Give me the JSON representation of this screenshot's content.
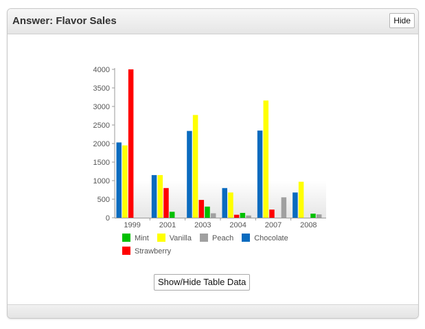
{
  "panel": {
    "title": "Answer: Flavor Sales",
    "hide_label": "Hide",
    "toggle_label": "Show/Hide Table Data"
  },
  "chart_data": {
    "type": "bar",
    "categories": [
      "1999",
      "2001",
      "2003",
      "2004",
      "2007",
      "2008"
    ],
    "ylim": [
      0,
      4000
    ],
    "yticks": [
      0,
      500,
      1000,
      1500,
      2000,
      2500,
      3000,
      3500,
      4000
    ],
    "grid": false,
    "legend_placement": "bottom",
    "series": [
      {
        "name": "Chocolate",
        "color": "#0a6bbf",
        "values": [
          2030,
          1150,
          2340,
          800,
          2350,
          680
        ]
      },
      {
        "name": "Vanilla",
        "color": "#ffff00",
        "values": [
          1950,
          1150,
          2770,
          680,
          3160,
          970
        ]
      },
      {
        "name": "Strawberry",
        "color": "#ff0000",
        "values": [
          4000,
          800,
          480,
          80,
          220,
          0
        ]
      },
      {
        "name": "Mint",
        "color": "#00c000",
        "values": [
          0,
          160,
          300,
          130,
          0,
          110
        ]
      },
      {
        "name": "Peach",
        "color": "#a0a0a0",
        "values": [
          0,
          0,
          120,
          60,
          550,
          90
        ]
      }
    ],
    "legend": [
      "Mint",
      "Vanilla",
      "Peach",
      "Chocolate",
      "Strawberry"
    ]
  }
}
